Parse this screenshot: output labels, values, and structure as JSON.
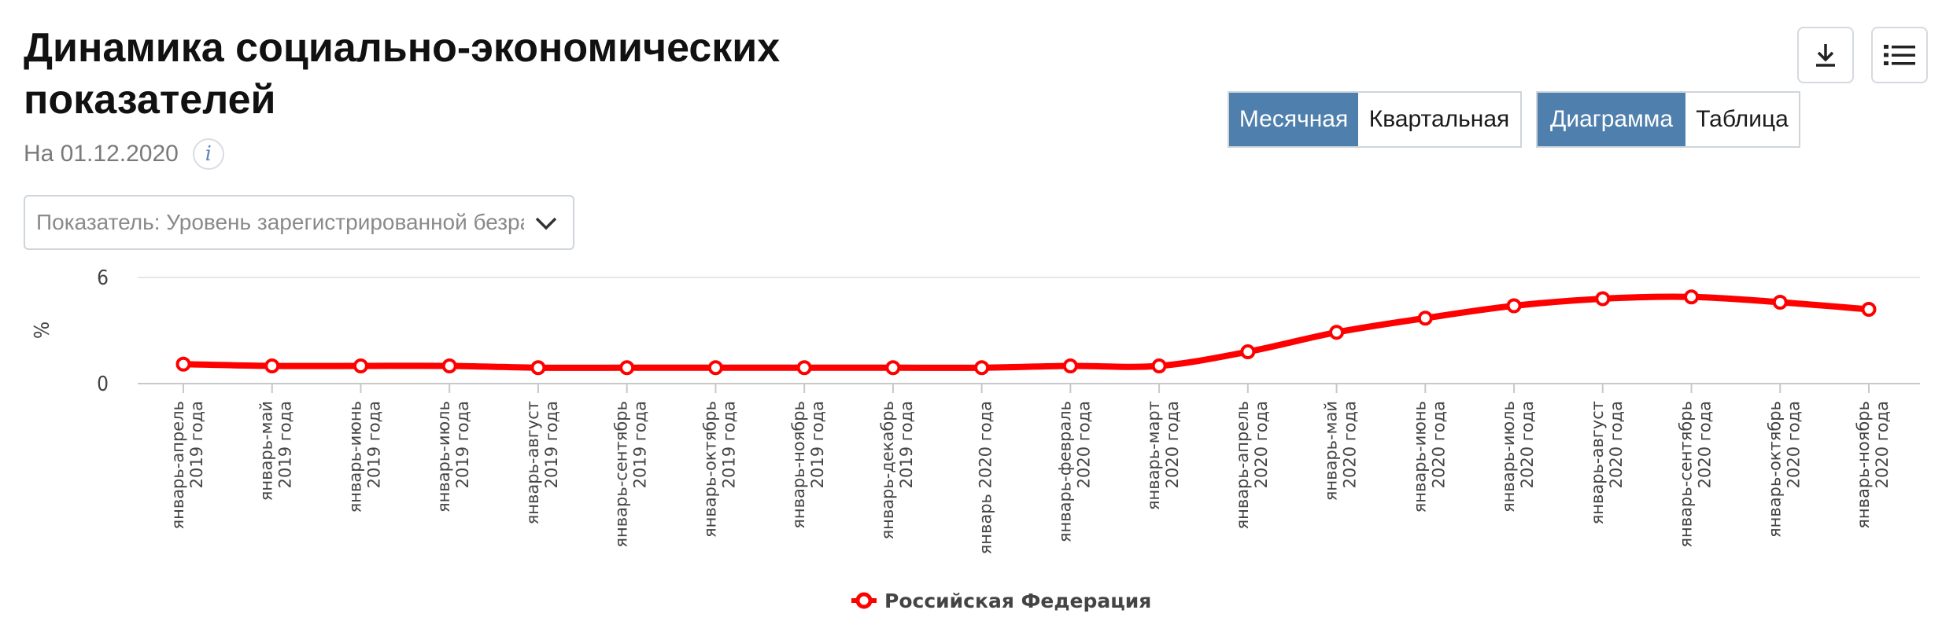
{
  "header": {
    "title": "Динамика социально-экономических показателей",
    "date": "На 01.12.2020",
    "info_symbol": "i"
  },
  "selector": {
    "text": "Показатель: Уровень зарегистрированной безработицы"
  },
  "period_toggle": {
    "monthly": "Месячная",
    "quarterly": "Квартальная",
    "active": "monthly"
  },
  "view_toggle": {
    "chart": "Диаграмма",
    "table": "Таблица",
    "active": "chart"
  },
  "toolbar": {
    "download_icon": "download-icon",
    "menu_icon": "menu-icon"
  },
  "colors": {
    "accent": "#4f7fac",
    "series": "#ff0000"
  },
  "chart_data": {
    "type": "line",
    "ylabel": "%",
    "ylim": [
      0,
      6
    ],
    "yticks": [
      0,
      6
    ],
    "grid": true,
    "legend_position": "bottom-center",
    "categories": [
      [
        "январь-апрель",
        "2019 года"
      ],
      [
        "январь-май",
        "2019 года"
      ],
      [
        "январь-июнь",
        "2019 года"
      ],
      [
        "январь-июль",
        "2019 года"
      ],
      [
        "январь-август",
        "2019 года"
      ],
      [
        "январь-сентябрь",
        "2019 года"
      ],
      [
        "январь-октябрь",
        "2019 года"
      ],
      [
        "январь-ноябрь",
        "2019 года"
      ],
      [
        "январь-декабрь",
        "2019 года"
      ],
      [
        "январь 2020 года"
      ],
      [
        "январь-февраль",
        "2020 года"
      ],
      [
        "январь-март",
        "2020 года"
      ],
      [
        "январь-апрель",
        "2020 года"
      ],
      [
        "январь-май",
        "2020 года"
      ],
      [
        "январь-июнь",
        "2020 года"
      ],
      [
        "январь-июль",
        "2020 года"
      ],
      [
        "январь-август",
        "2020 года"
      ],
      [
        "январь-сентябрь",
        "2020 года"
      ],
      [
        "январь-октябрь",
        "2020 года"
      ],
      [
        "январь-ноябрь",
        "2020 года"
      ]
    ],
    "series": [
      {
        "name": "Российская Федерация",
        "values": [
          1.1,
          1.0,
          1.0,
          1.0,
          0.9,
          0.9,
          0.9,
          0.9,
          0.9,
          0.9,
          1.0,
          1.0,
          1.8,
          2.9,
          3.7,
          4.4,
          4.8,
          4.9,
          4.6,
          4.2
        ]
      }
    ]
  }
}
